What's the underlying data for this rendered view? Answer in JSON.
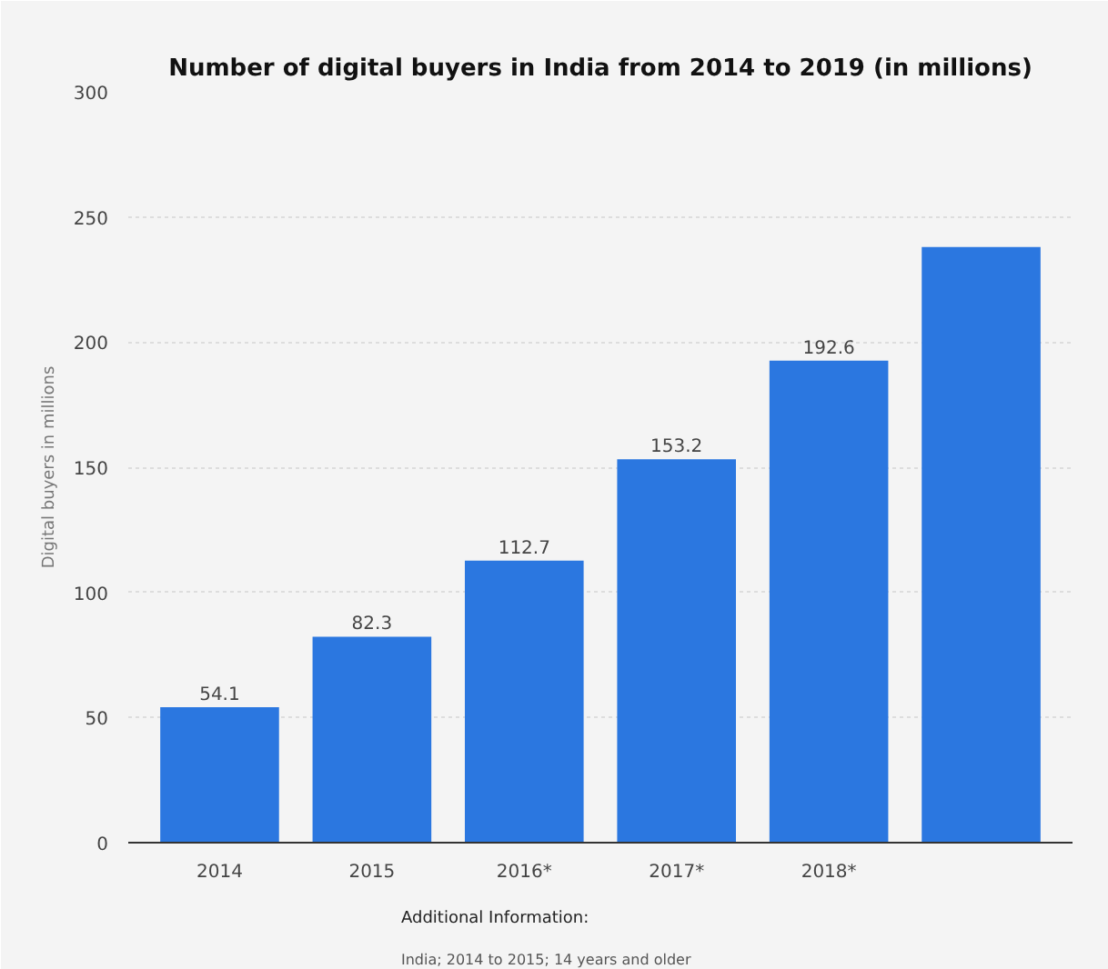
{
  "chart_data": {
    "type": "bar",
    "title": "Number of digital buyers in India from 2014 to 2019 (in millions)",
    "ylabel": "Digital buyers in millions",
    "categories": [
      "2014",
      "2015",
      "2016*",
      "2017*",
      "2018*",
      null
    ],
    "values": [
      54.1,
      82.3,
      112.7,
      153.2,
      192.6,
      238
    ],
    "value_labels": [
      "54.1",
      "82.3",
      "112.7",
      "153.2",
      "192.6",
      null
    ],
    "color": "#2b77e0",
    "ylim": [
      0,
      300
    ],
    "yticks": [
      0,
      50,
      100,
      150,
      200,
      250,
      300
    ],
    "grid": "y",
    "annotations": [
      "Additional Information:",
      "India; 2014 to 2015; 14 years and older"
    ]
  }
}
